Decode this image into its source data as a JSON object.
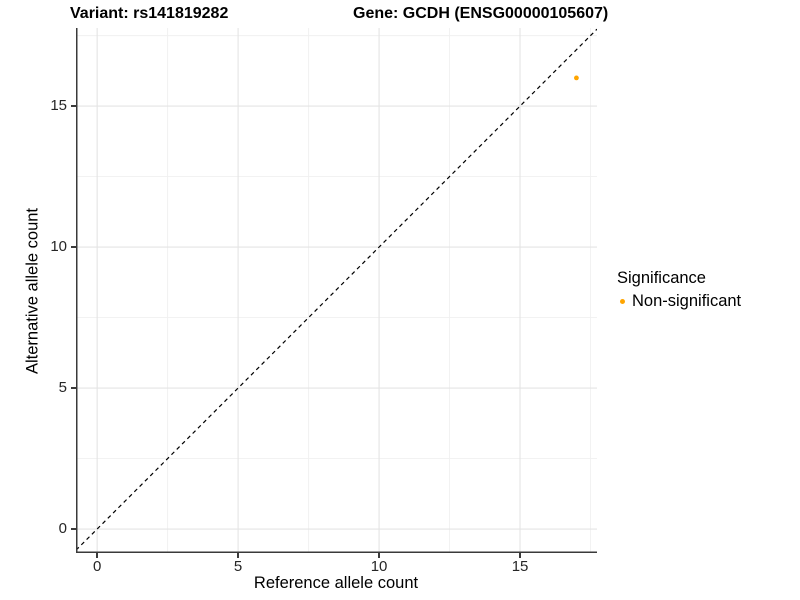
{
  "chart_data": {
    "type": "scatter",
    "title_variant": "Variant: rs141819282",
    "title_gene": "Gene: GCDH (ENSG00000105607)",
    "xlabel": "Reference allele count",
    "ylabel": "Alternative allele count",
    "xlim": [
      -0.75,
      17.73
    ],
    "ylim": [
      -0.85,
      17.77
    ],
    "xticks": [
      0,
      5,
      10,
      15
    ],
    "yticks": [
      0,
      5,
      10,
      15
    ],
    "x_minor_ticks": [
      2.5,
      7.5,
      12.5,
      17.5
    ],
    "y_minor_ticks": [
      2.5,
      7.5,
      12.5,
      17.5
    ],
    "grid": {
      "major": true,
      "minor": true
    },
    "points": [
      {
        "x": 17,
        "y": 16,
        "series": "Non-significant"
      }
    ],
    "reference_line": {
      "type": "abline",
      "slope": 1,
      "intercept": 0,
      "linestyle": "dashed",
      "color": "#000000"
    },
    "legend": {
      "title": "Significance",
      "position": "right",
      "items": [
        {
          "label": "Non-significant",
          "color": "#FFA500"
        }
      ]
    }
  },
  "colors": {
    "background": "#FFFFFF",
    "major_grid": "#E4E4E4",
    "minor_grid": "#F0F0F0",
    "axis_line": "#3A3A3A",
    "tick_text": "#262626",
    "point": "#FFA500"
  }
}
